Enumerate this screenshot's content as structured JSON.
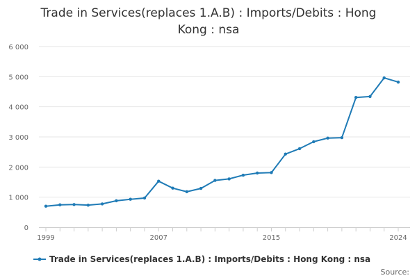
{
  "chart_data": {
    "type": "line",
    "title_lines": [
      "Trade in Services(replaces 1.A.B) : Imports/Debits : Hong",
      "Kong : nsa"
    ],
    "x": [
      1999,
      2000,
      2001,
      2002,
      2003,
      2004,
      2005,
      2006,
      2007,
      2008,
      2009,
      2010,
      2011,
      2012,
      2013,
      2014,
      2015,
      2016,
      2017,
      2018,
      2019,
      2020,
      2021,
      2022,
      2023,
      2024
    ],
    "series": [
      {
        "name": "Trade in Services(replaces 1.A.B) : Imports/Debits : Hong Kong : nsa",
        "values": [
          700,
          745,
          755,
          735,
          775,
          880,
          930,
          970,
          1530,
          1300,
          1180,
          1290,
          1555,
          1605,
          1730,
          1800,
          1815,
          2430,
          2610,
          2840,
          2960,
          2975,
          4310,
          4340,
          4960,
          4820
        ]
      }
    ],
    "x_ticks": [
      1999,
      2007,
      2015,
      2024
    ],
    "x_tick_labels": [
      "1999",
      "2007",
      "2015",
      "2024"
    ],
    "y_ticks": [
      0,
      1000,
      2000,
      3000,
      4000,
      5000,
      6000
    ],
    "y_tick_labels": [
      "0",
      "1 000",
      "2 000",
      "3 000",
      "4 000",
      "5 000",
      "6 000"
    ],
    "ylim": [
      0,
      6000
    ],
    "xlim": [
      1999,
      2024
    ],
    "grid": "horizontal",
    "legend_position": "bottom",
    "line_color": "#1f7bb6"
  },
  "source_label": "Source:"
}
